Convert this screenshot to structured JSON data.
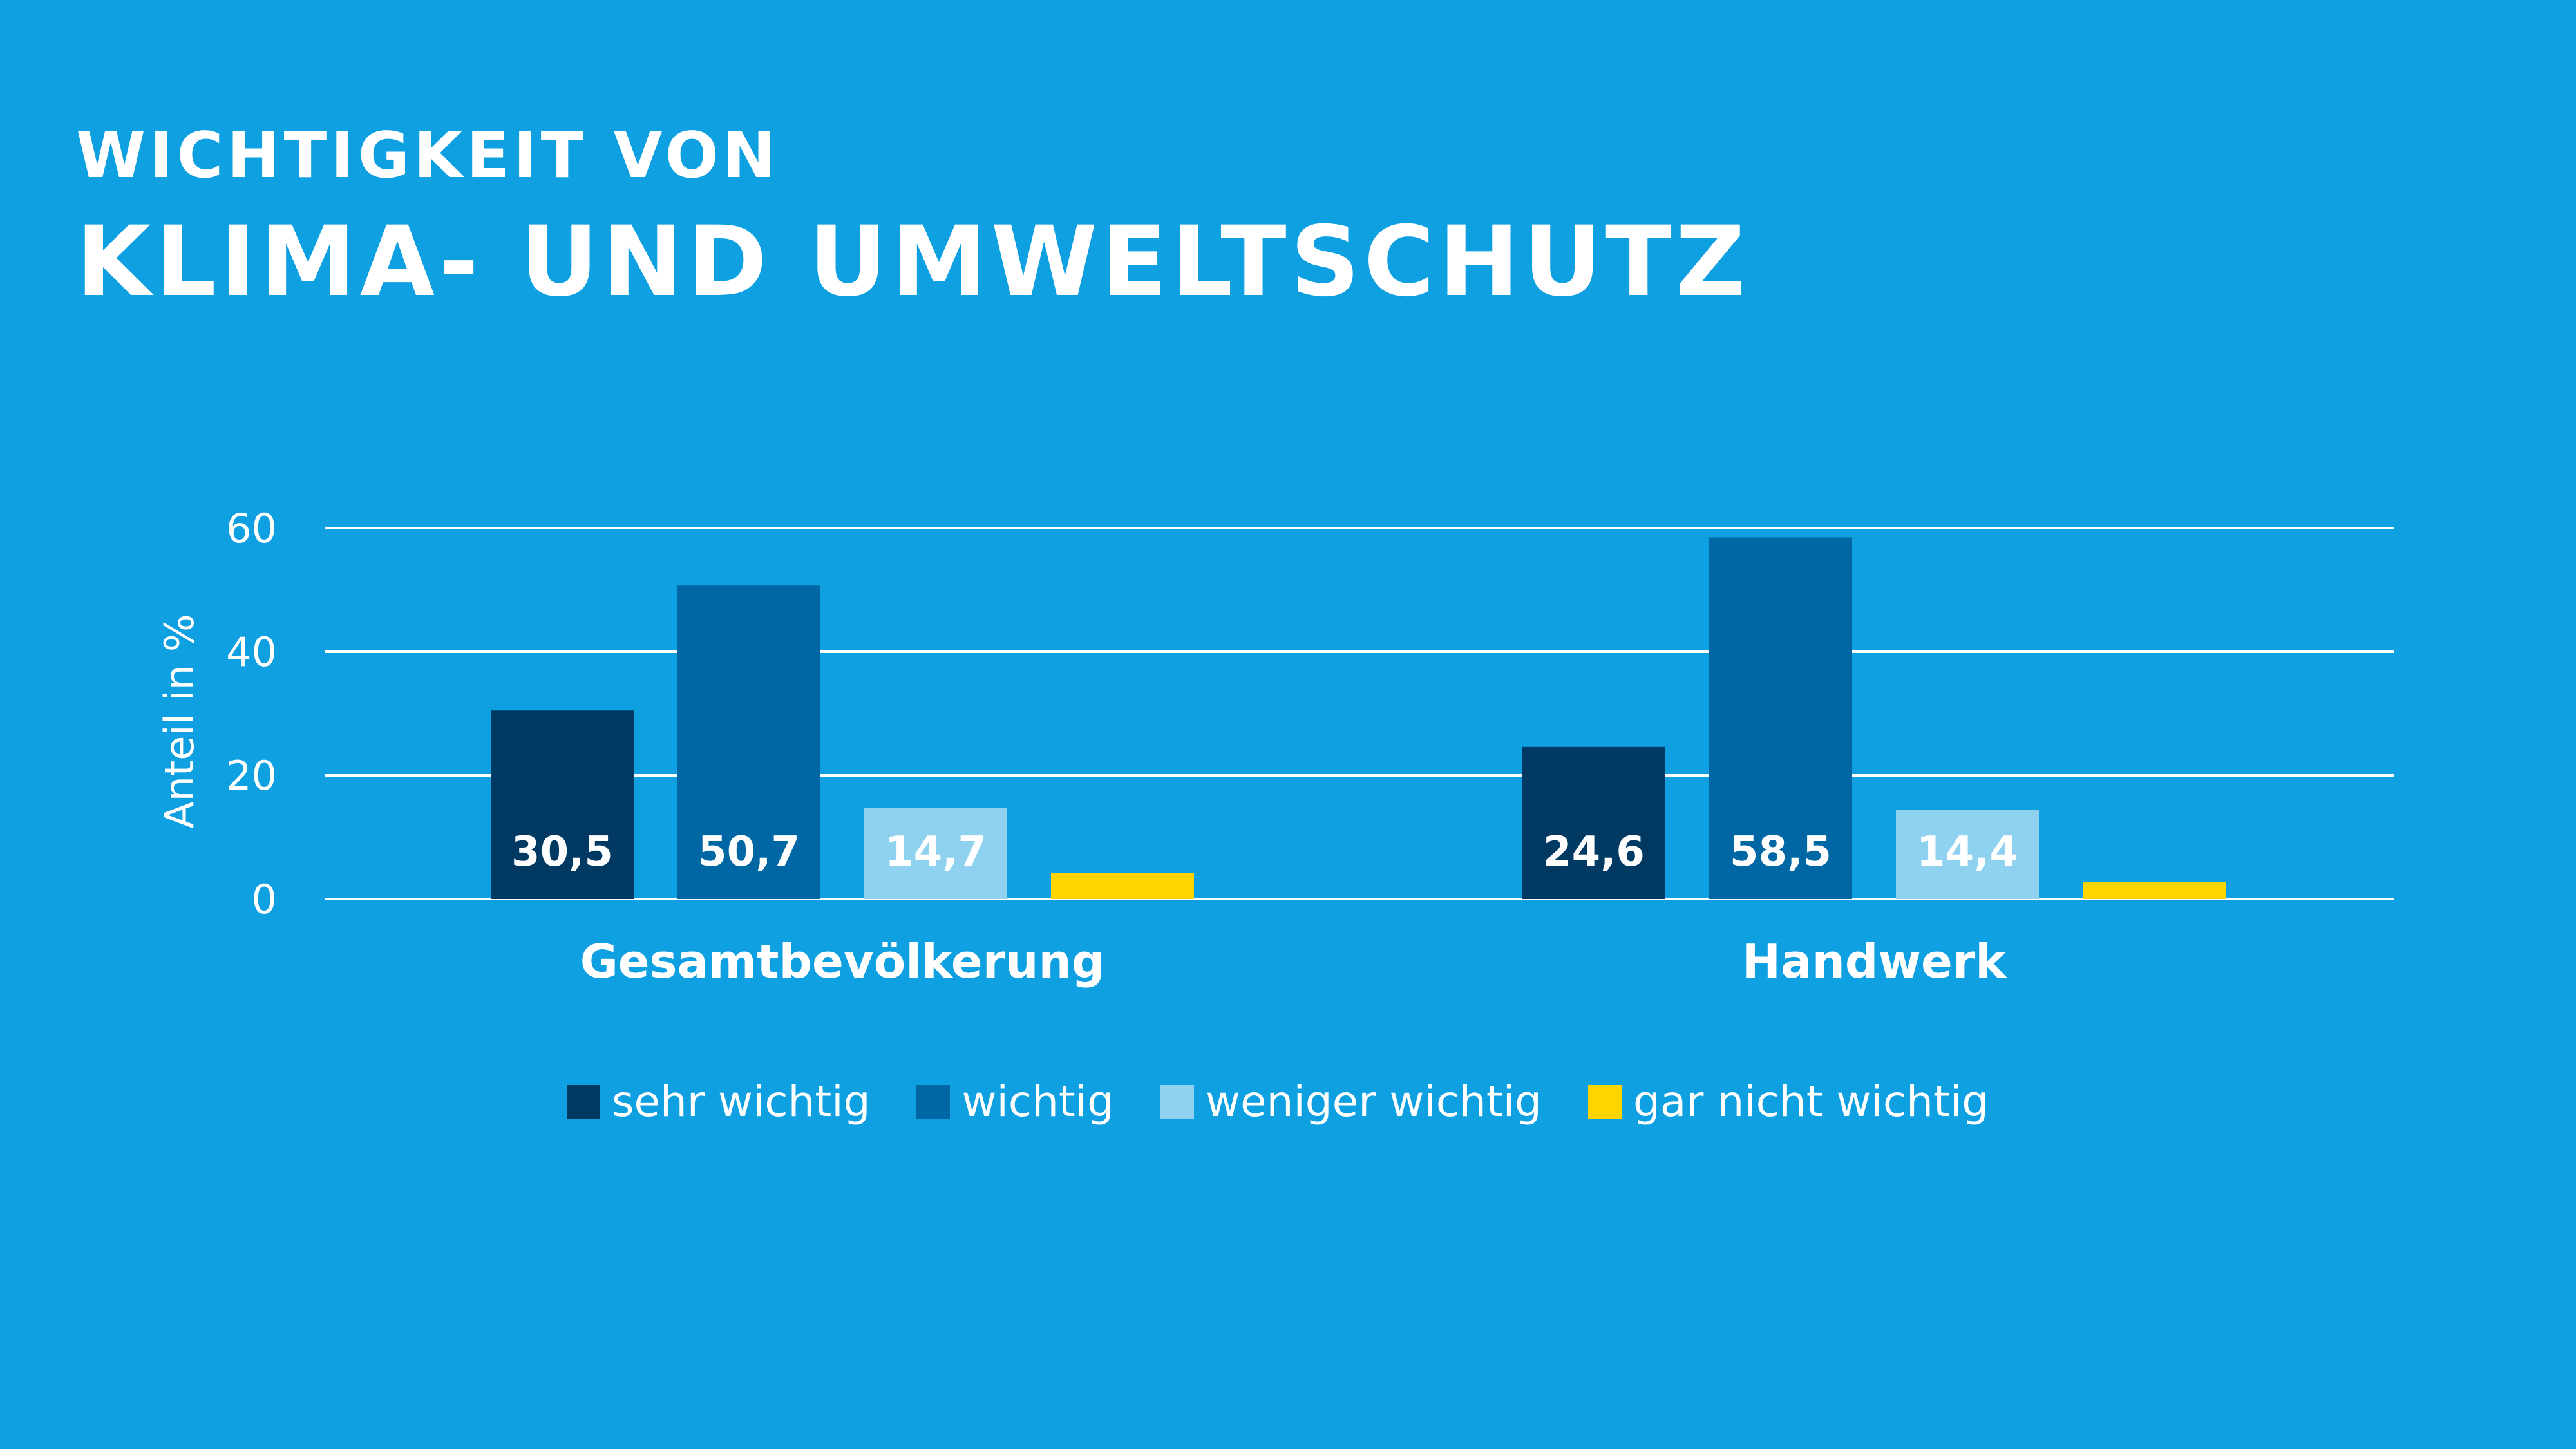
{
  "title": {
    "line1": "Wichtigkeit von",
    "line2": "Klima- und Umweltschutz"
  },
  "colors": {
    "background": "#0fa0e2",
    "sehr_wichtig": "#003a63",
    "wichtig": "#0067a5",
    "weniger_wichtig": "#8fd2ef",
    "gar_nicht_wichtig": "#ffd500",
    "text": "#ffffff",
    "gridline": "#ffffff"
  },
  "chart_data": {
    "type": "bar",
    "title": "Wichtigkeit von Klima- und Umweltschutz",
    "ylabel": "Anteil in %",
    "xlabel": "",
    "ylim": [
      0,
      60
    ],
    "yticks": [
      "0",
      "20",
      "40",
      "60"
    ],
    "ytick_values": [
      0,
      20,
      40,
      60
    ],
    "grid": true,
    "legend_position": "bottom",
    "categories": [
      "Gesamtbevölkerung",
      "Handwerk"
    ],
    "series": [
      {
        "name": "sehr wichtig",
        "color": "#003a63",
        "values": [
          30.5,
          24.6
        ],
        "labels": [
          "30,5",
          "24,6"
        ]
      },
      {
        "name": "wichtig",
        "color": "#0067a5",
        "values": [
          50.7,
          58.5
        ],
        "labels": [
          "50,7",
          "58,5"
        ]
      },
      {
        "name": "weniger wichtig",
        "color": "#8fd2ef",
        "values": [
          14.7,
          14.4
        ],
        "labels": [
          "14,7",
          "14,4"
        ]
      },
      {
        "name": "gar nicht wichtig",
        "color": "#ffd500",
        "values": [
          4.2,
          2.7
        ],
        "labels": [
          "",
          ""
        ]
      }
    ]
  }
}
